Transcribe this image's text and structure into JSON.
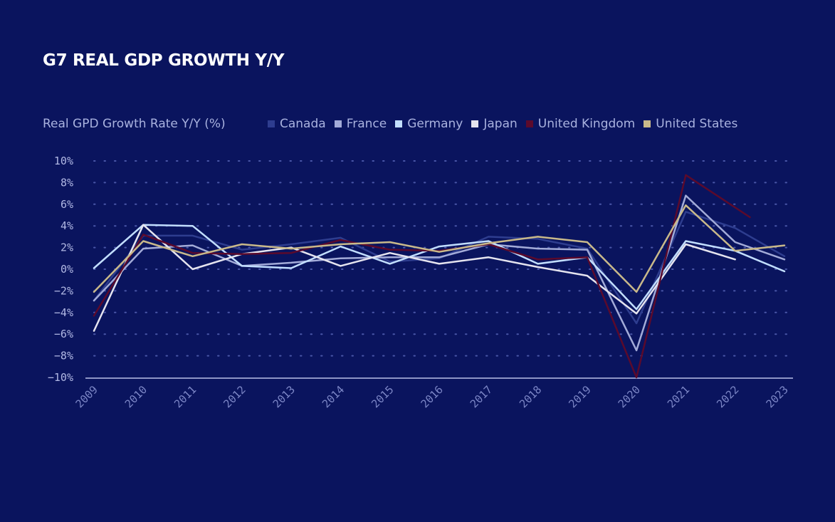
{
  "chart_data": {
    "type": "line",
    "title": "G7 REAL GDP GROWTH Y/Y",
    "ylabel": "Real GPD Growth Rate Y/Y (%)",
    "xlabel": "",
    "x": [
      "2009",
      "2010",
      "2011",
      "2012",
      "2013",
      "2014",
      "2015",
      "2016",
      "2017",
      "2018",
      "2019",
      "2020",
      "2021",
      "2022",
      "2023"
    ],
    "ylim": [
      -10,
      10
    ],
    "yticks": [
      10,
      8,
      6,
      4,
      2,
      0,
      -2,
      -4,
      -6,
      -8,
      -10
    ],
    "ytick_labels": [
      "10%",
      "8%",
      "6%",
      "4%",
      "2%",
      "0%",
      "−2%",
      "−4%",
      "−6%",
      "−8%",
      "−10%"
    ],
    "grid": "horizontal-dotted",
    "legend_position": "top",
    "series": [
      {
        "name": "Canada",
        "color": "#2e3d8f",
        "values": [
          -2.9,
          3.1,
          3.1,
          1.8,
          2.3,
          2.9,
          0.7,
          1.0,
          3.0,
          2.8,
          1.9,
          -5.0,
          5.3,
          3.8,
          1.2
        ]
      },
      {
        "name": "France",
        "color": "#a3abd8",
        "values": [
          -2.9,
          1.9,
          2.2,
          0.3,
          0.6,
          1.0,
          1.1,
          1.1,
          2.3,
          1.9,
          1.8,
          -7.5,
          6.8,
          2.5,
          0.9
        ]
      },
      {
        "name": "Germany",
        "color": "#c2deff",
        "values": [
          0.1,
          4.1,
          4.0,
          0.3,
          0.1,
          2.1,
          0.5,
          2.1,
          2.6,
          0.5,
          1.1,
          -3.7,
          2.6,
          1.7,
          -0.2
        ]
      },
      {
        "name": "Japan",
        "color": "#e5e4ef",
        "values": [
          -5.7,
          4.1,
          0.0,
          1.4,
          2.0,
          0.3,
          1.5,
          0.5,
          1.1,
          0.2,
          -0.6,
          -4.1,
          2.3,
          0.9,
          null
        ]
      },
      {
        "name": "United Kingdom",
        "color": "#5b0a2c",
        "values": [
          -4.3,
          3.2,
          1.5,
          1.4,
          1.5,
          2.7,
          1.8,
          1.7,
          2.3,
          0.9,
          1.1,
          -10.0,
          8.7,
          null,
          null
        ],
        "tail_value": 4.8
      },
      {
        "name": "United States",
        "color": "#c9b98a",
        "values": [
          -2.1,
          2.6,
          1.2,
          2.3,
          1.9,
          2.3,
          2.5,
          1.6,
          2.4,
          3.0,
          2.5,
          -2.1,
          5.9,
          1.7,
          2.2
        ]
      }
    ]
  }
}
